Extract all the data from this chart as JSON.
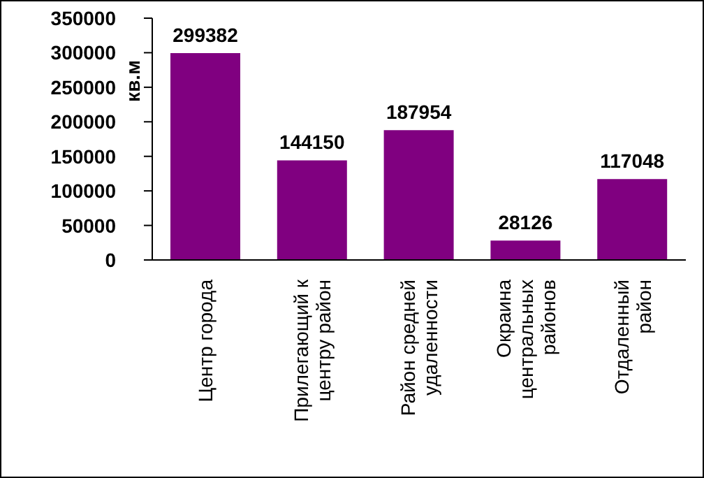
{
  "chart_data": {
    "type": "bar",
    "ylabel": "кв.м",
    "categories": [
      "Центр города",
      "Прилегающий к центру район",
      "Район средней удаленности",
      "Окраина центральных районов",
      "Отдаленный район"
    ],
    "values": [
      299382,
      144150,
      187954,
      28126,
      117048
    ],
    "color": "#800080",
    "ylim": [
      0,
      350000
    ],
    "yticks": [
      0,
      50000,
      100000,
      150000,
      200000,
      250000,
      300000,
      350000
    ],
    "grid": false,
    "data_labels": true,
    "legend": false
  }
}
